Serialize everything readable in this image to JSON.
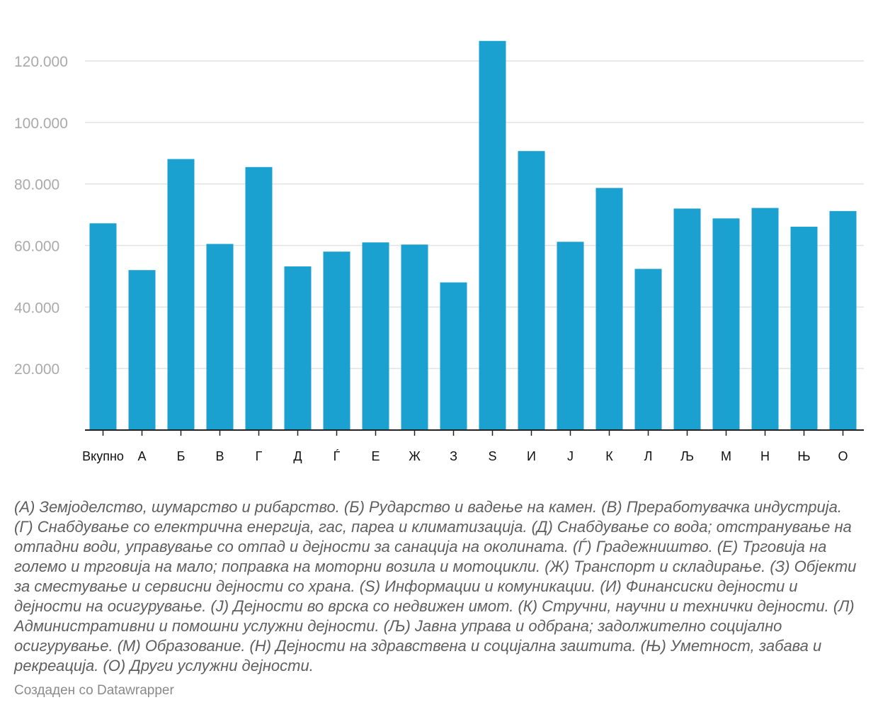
{
  "chart_data": {
    "type": "bar",
    "categories": [
      "Вкупно",
      "А",
      "Б",
      "В",
      "Г",
      "Д",
      "Ѓ",
      "Е",
      "Ж",
      "З",
      "Ѕ",
      "И",
      "Ј",
      "К",
      "Л",
      "Љ",
      "М",
      "Н",
      "Њ",
      "О"
    ],
    "values": [
      67200,
      52000,
      88100,
      60500,
      85500,
      53200,
      58000,
      61000,
      60300,
      48000,
      126500,
      90700,
      61200,
      78700,
      52400,
      72000,
      68800,
      72200,
      66100,
      71200
    ],
    "ylim": [
      0,
      120000
    ],
    "y_ticks": [
      20000,
      40000,
      60000,
      80000,
      100000,
      120000
    ],
    "y_tick_labels": [
      "20.000",
      "40.000",
      "60.000",
      "80.000",
      "100.000",
      "120.000"
    ],
    "grid": true,
    "colors": {
      "bar": "#1ba1cf",
      "grid": "#e2e2e2",
      "axis": "#222222",
      "tick_label": "#aaaaaa"
    }
  },
  "footnote": "(А) Земјоделство, шумарство и рибарство. (Б) Рударство и вадење на камен. (В) Преработувачка индустрија. (Г) Снабдување со електрична енергија, гас, пареа и климатизација. (Д) Снабдување со вода; отстранување на отпадни води, управување со отпад и дејности за санација на околината. (Ѓ) Градежништво. (Е) Трговија на големо и трговија на мало; поправка на моторни возила и мотоцикли. (Ж) Транспорт и складирање. (З) Објекти за сместување и сервисни дејности со храна. (Ѕ) Информации и комуникации. (И) Финансиски дејности и дејности на осигурување. (Ј) Дејности во врска со недвижен имот. (К) Стручни, научни и технички дејности. (Л) Административни и помошни услужни дејности. (Љ) Јавна управа и одбрана; задолжително социјално осигурување. (М) Образование. (Н) Дејности на здравствена и социјална заштита. (Њ) Уметност, забава и рекреација. (О) Други услужни дејности.",
  "credit": "Создаден со Datawrapper"
}
